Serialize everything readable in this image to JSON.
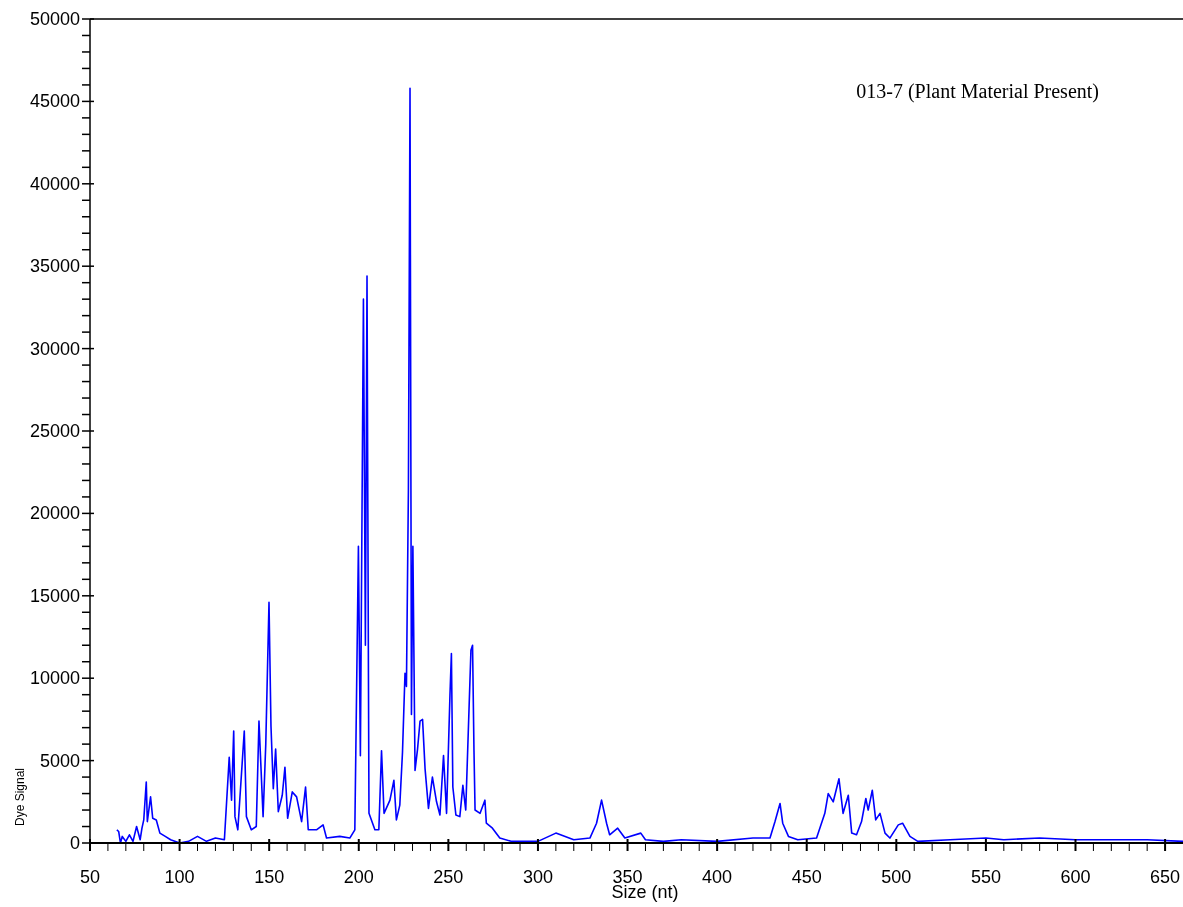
{
  "chart_data": {
    "type": "line",
    "title": "013-7 (Plant Material Present)",
    "xlabel": "Size (nt)",
    "ylabel": "Dye Signal",
    "xlim": [
      50,
      660
    ],
    "ylim": [
      0,
      50000
    ],
    "xticks": [
      50,
      {
        "value": 60,
        "label": null
      },
      {
        "value": 70,
        "label": null
      },
      {
        "value": 80,
        "label": null
      },
      {
        "value": 90,
        "label": null
      },
      100,
      {
        "value": 110,
        "label": null
      },
      {
        "value": 120,
        "label": null
      },
      {
        "value": 130,
        "label": null
      },
      {
        "value": 140,
        "label": null
      },
      150,
      {
        "value": 160,
        "label": null
      },
      {
        "value": 170,
        "label": null
      },
      {
        "value": 180,
        "label": null
      },
      {
        "value": 190,
        "label": null
      },
      200,
      {
        "value": 210,
        "label": null
      },
      {
        "value": 220,
        "label": null
      },
      {
        "value": 230,
        "label": null
      },
      {
        "value": 240,
        "label": null
      },
      250,
      {
        "value": 260,
        "label": null
      },
      {
        "value": 270,
        "label": null
      },
      {
        "value": 280,
        "label": null
      },
      {
        "value": 290,
        "label": null
      },
      300,
      {
        "value": 310,
        "label": null
      },
      {
        "value": 320,
        "label": null
      },
      {
        "value": 330,
        "label": null
      },
      {
        "value": 340,
        "label": null
      },
      350,
      {
        "value": 360,
        "label": null
      },
      {
        "value": 370,
        "label": null
      },
      {
        "value": 380,
        "label": null
      },
      {
        "value": 390,
        "label": null
      },
      400,
      {
        "value": 410,
        "label": null
      },
      {
        "value": 420,
        "label": null
      },
      {
        "value": 430,
        "label": null
      },
      {
        "value": 440,
        "label": null
      },
      450,
      {
        "value": 460,
        "label": null
      },
      {
        "value": 470,
        "label": null
      },
      {
        "value": 480,
        "label": null
      },
      {
        "value": 490,
        "label": null
      },
      500,
      {
        "value": 510,
        "label": null
      },
      {
        "value": 520,
        "label": null
      },
      {
        "value": 530,
        "label": null
      },
      {
        "value": 540,
        "label": null
      },
      550,
      {
        "value": 560,
        "label": null
      },
      {
        "value": 570,
        "label": null
      },
      {
        "value": 580,
        "label": null
      },
      {
        "value": 590,
        "label": null
      },
      600,
      {
        "value": 610,
        "label": null
      },
      {
        "value": 620,
        "label": null
      },
      {
        "value": 630,
        "label": null
      },
      {
        "value": 640,
        "label": null
      },
      650
    ],
    "yticks": [
      0,
      {
        "value": 1000,
        "label": null
      },
      {
        "value": 2000,
        "label": null
      },
      {
        "value": 3000,
        "label": null
      },
      {
        "value": 4000,
        "label": null
      },
      5000,
      {
        "value": 6000,
        "label": null
      },
      {
        "value": 7000,
        "label": null
      },
      {
        "value": 8000,
        "label": null
      },
      {
        "value": 9000,
        "label": null
      },
      10000,
      {
        "value": 11000,
        "label": null
      },
      {
        "value": 12000,
        "label": null
      },
      {
        "value": 13000,
        "label": null
      },
      {
        "value": 14000,
        "label": null
      },
      15000,
      {
        "value": 16000,
        "label": null
      },
      {
        "value": 17000,
        "label": null
      },
      {
        "value": 18000,
        "label": null
      },
      {
        "value": 19000,
        "label": null
      },
      20000,
      {
        "value": 21000,
        "label": null
      },
      {
        "value": 22000,
        "label": null
      },
      {
        "value": 23000,
        "label": null
      },
      {
        "value": 24000,
        "label": null
      },
      25000,
      {
        "value": 26000,
        "label": null
      },
      {
        "value": 27000,
        "label": null
      },
      {
        "value": 28000,
        "label": null
      },
      {
        "value": 29000,
        "label": null
      },
      30000,
      {
        "value": 31000,
        "label": null
      },
      {
        "value": 32000,
        "label": null
      },
      {
        "value": 33000,
        "label": null
      },
      {
        "value": 34000,
        "label": null
      },
      35000,
      {
        "value": 36000,
        "label": null
      },
      {
        "value": 37000,
        "label": null
      },
      {
        "value": 38000,
        "label": null
      },
      {
        "value": 39000,
        "label": null
      },
      40000,
      {
        "value": 41000,
        "label": null
      },
      {
        "value": 42000,
        "label": null
      },
      {
        "value": 43000,
        "label": null
      },
      {
        "value": 44000,
        "label": null
      },
      45000,
      {
        "value": 46000,
        "label": null
      },
      {
        "value": 47000,
        "label": null
      },
      {
        "value": 48000,
        "label": null
      },
      {
        "value": 49000,
        "label": null
      },
      50000
    ],
    "marker": "none",
    "line_style": "solid",
    "series": [
      {
        "color": "#0000ff",
        "x": [
          65,
          66,
          67,
          68,
          70,
          72,
          74,
          76,
          78,
          79,
          80,
          81.4,
          82,
          83.8,
          85,
          87,
          89,
          92,
          95,
          100,
          105,
          110,
          115,
          120,
          125,
          127.7,
          129,
          130.2,
          130.9,
          132.5,
          136.1,
          137.3,
          140,
          142.8,
          144.3,
          146.6,
          148.1,
          149.9,
          151,
          152.3,
          153.6,
          155.1,
          157.3,
          158.8,
          160.3,
          162.9,
          165.3,
          168.1,
          170.3,
          171.8,
          176.4,
          180.1,
          182,
          189.4,
          195,
          197.8,
          199.8,
          200.9,
          202.6,
          203.7,
          204.6,
          205.4,
          205.7,
          209,
          211.2,
          212.7,
          214.1,
          217.4,
          219.6,
          221,
          222.9,
          224.4,
          225.8,
          226.6,
          227.7,
          228.6,
          229.4,
          230.2,
          231.4,
          232.8,
          234.2,
          235.6,
          237,
          238.9,
          241.1,
          243.4,
          245.3,
          247.3,
          249,
          250.9,
          251.7,
          252.5,
          254.2,
          256.4,
          258.1,
          259.7,
          262.6,
          263.5,
          264.3,
          264.9,
          267.7,
          270.4,
          271.2,
          274.6,
          278.7,
          285,
          300,
          310,
          320,
          329,
          332.7,
          335.5,
          338.3,
          340,
          344.5,
          348.5,
          357.4,
          360,
          370,
          380,
          400,
          420,
          429.5,
          432.3,
          435.1,
          436.6,
          439.8,
          445,
          455.5,
          460.1,
          462,
          464.8,
          468,
          470.3,
          473.2,
          475.1,
          477.8,
          480.6,
          483,
          484.3,
          486.6,
          488.5,
          490.9,
          493.7,
          496.4,
          501.1,
          503.5,
          507.6,
          512,
          530,
          550,
          560,
          580,
          600,
          620,
          640,
          660
        ],
        "values": [
          800,
          700,
          0,
          400,
          100,
          500,
          100,
          1000,
          200,
          900,
          1400,
          3700,
          1300,
          2800,
          1500,
          1400,
          600,
          400,
          200,
          0,
          100,
          400,
          100,
          300,
          200,
          5200,
          2600,
          6800,
          1600,
          800,
          6800,
          1600,
          800,
          1000,
          7400,
          1600,
          6000,
          14600,
          7100,
          3300,
          5700,
          1900,
          2900,
          4600,
          1500,
          3100,
          2800,
          1300,
          3400,
          800,
          800,
          1100,
          300,
          400,
          300,
          800,
          18000,
          5300,
          33000,
          12000,
          34400,
          10200,
          1800,
          800,
          800,
          5600,
          1800,
          2600,
          3800,
          1400,
          2300,
          5500,
          10300,
          9500,
          21400,
          45800,
          7800,
          18000,
          4400,
          5700,
          7400,
          7500,
          4500,
          2100,
          4000,
          2500,
          1700,
          5300,
          1800,
          9000,
          11500,
          3400,
          1700,
          1600,
          3500,
          2000,
          11700,
          12000,
          5600,
          2000,
          1800,
          2600,
          1200,
          900,
          300,
          100,
          100,
          600,
          200,
          300,
          1200,
          2600,
          1200,
          500,
          900,
          300,
          600,
          200,
          100,
          200,
          100,
          300,
          300,
          1300,
          2400,
          1200,
          400,
          200,
          300,
          1800,
          3000,
          2500,
          3900,
          1800,
          2900,
          600,
          500,
          1300,
          2700,
          2000,
          3200,
          1400,
          1800,
          600,
          300,
          1100,
          1200,
          400,
          100,
          200,
          300,
          200,
          300,
          200,
          200,
          200,
          100
        ]
      }
    ]
  }
}
